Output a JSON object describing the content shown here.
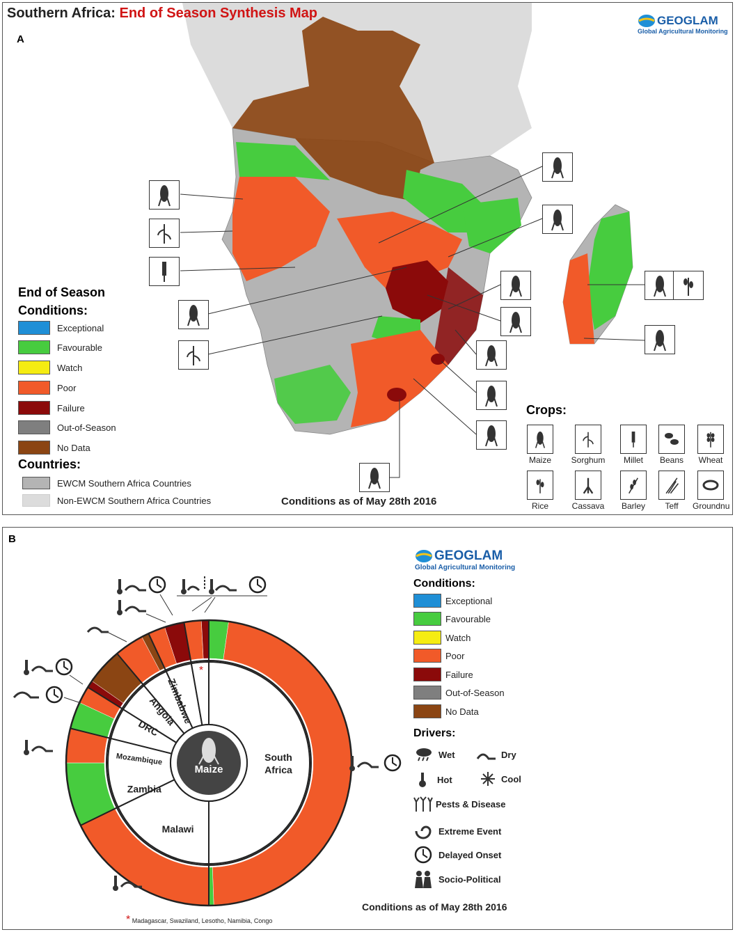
{
  "panel_a": {
    "title_prefix": "Southern Africa: ",
    "title_red": "End of Season Synthesis Map",
    "letter": "A",
    "logo_main": "GEOGLAM",
    "logo_sub": "Global Agricultural Monitoring",
    "legend_title_1": "End of Season",
    "legend_title_2": "Conditions:",
    "conditions": [
      {
        "label": "Exceptional",
        "color": "#1f8fd6"
      },
      {
        "label": "Favourable",
        "color": "#47cc3f"
      },
      {
        "label": "Watch",
        "color": "#f5ec12"
      },
      {
        "label": "Poor",
        "color": "#f15a29"
      },
      {
        "label": "Failure",
        "color": "#8b0a0a"
      },
      {
        "label": "Out-of-Season",
        "color": "#7f7f7f"
      },
      {
        "label": "No Data",
        "color": "#8b4513"
      }
    ],
    "countries_title": "Countries:",
    "countries": [
      {
        "label": "EWCM Southern Africa Countries",
        "color": "#b4b4b4"
      },
      {
        "label": "Non-EWCM Southern Africa Countries",
        "color": "#dcdcdc"
      }
    ],
    "date_note": "Conditions as of May 28th 2016",
    "crops_title": "Crops:",
    "crops": [
      "Maize",
      "Sorghum",
      "Millet",
      "Beans",
      "Wheat",
      "Rice",
      "Cassava",
      "Barley",
      "Teff",
      "Groundnu"
    ]
  },
  "panel_b": {
    "letter": "B",
    "logo_main": "GEOGLAM",
    "logo_sub": "Global Agricultural Monitoring",
    "conditions_title": "Conditions:",
    "conditions": [
      {
        "label": "Exceptional",
        "color": "#1f8fd6"
      },
      {
        "label": "Favourable",
        "color": "#47cc3f"
      },
      {
        "label": "Watch",
        "color": "#f5ec12"
      },
      {
        "label": "Poor",
        "color": "#f15a29"
      },
      {
        "label": "Failure",
        "color": "#8b0a0a"
      },
      {
        "label": "Out-of-Season",
        "color": "#7f7f7f"
      },
      {
        "label": "No Data",
        "color": "#8b4513"
      }
    ],
    "drivers_title": "Drivers:",
    "drivers": {
      "wet": "Wet",
      "dry": "Dry",
      "hot": "Hot",
      "cool": "Cool",
      "pests": "Pests & Disease",
      "extreme": "Extreme Event",
      "delayed": "Delayed Onset",
      "socio": "Socio-Political"
    },
    "center_label": "Maize",
    "countries": [
      "South Africa",
      "Malawi",
      "Zambia",
      "Mozambique",
      "DRC",
      "Angola",
      "Zimbabwe"
    ],
    "south_africa_line1": "South",
    "south_africa_line2": "Africa",
    "others_marker": "*",
    "others_note": "Madagascar,  Swaziland,  Lesotho,  Namibia,  Congo",
    "date_note": "Conditions as of May 28th 2016"
  },
  "chart_data": {
    "type": "pie",
    "title": "",
    "center": "Maize",
    "inner_ring": [
      {
        "country": "South Africa",
        "share_deg": 180
      },
      {
        "country": "Malawi",
        "share_deg": 64
      },
      {
        "country": "Zambia",
        "share_deg": 40
      },
      {
        "country": "Mozambique",
        "share_deg": 18
      },
      {
        "country": "DRC",
        "share_deg": 18
      },
      {
        "country": "Angola",
        "share_deg": 15
      },
      {
        "country": "Zimbabwe",
        "share_deg": 15
      },
      {
        "country": "Others*",
        "share_deg": 10
      }
    ],
    "outer_ring": [
      {
        "country": "South Africa",
        "condition": "Favourable",
        "deg": 8
      },
      {
        "country": "South Africa",
        "condition": "Poor",
        "deg": 170
      },
      {
        "country": "South Africa",
        "condition": "Favourable",
        "deg": 2
      },
      {
        "country": "Malawi",
        "condition": "Poor",
        "deg": 64
      },
      {
        "country": "Zambia",
        "condition": "Favourable",
        "deg": 26
      },
      {
        "country": "Zambia",
        "condition": "Poor",
        "deg": 14
      },
      {
        "country": "Mozambique",
        "condition": "Favourable",
        "deg": 11
      },
      {
        "country": "Mozambique",
        "condition": "Poor",
        "deg": 7
      },
      {
        "country": "DRC",
        "condition": "Failure",
        "deg": 3
      },
      {
        "country": "DRC",
        "condition": "No Data",
        "deg": 15
      },
      {
        "country": "Angola",
        "condition": "Poor",
        "deg": 12
      },
      {
        "country": "Angola",
        "condition": "No Data",
        "deg": 3
      },
      {
        "country": "Zimbabwe",
        "condition": "Poor",
        "deg": 7
      },
      {
        "country": "Zimbabwe",
        "condition": "Failure",
        "deg": 8
      },
      {
        "country": "Others*",
        "condition": "Poor",
        "deg": 7
      },
      {
        "country": "Others*",
        "condition": "Failure",
        "deg": 3
      }
    ]
  }
}
